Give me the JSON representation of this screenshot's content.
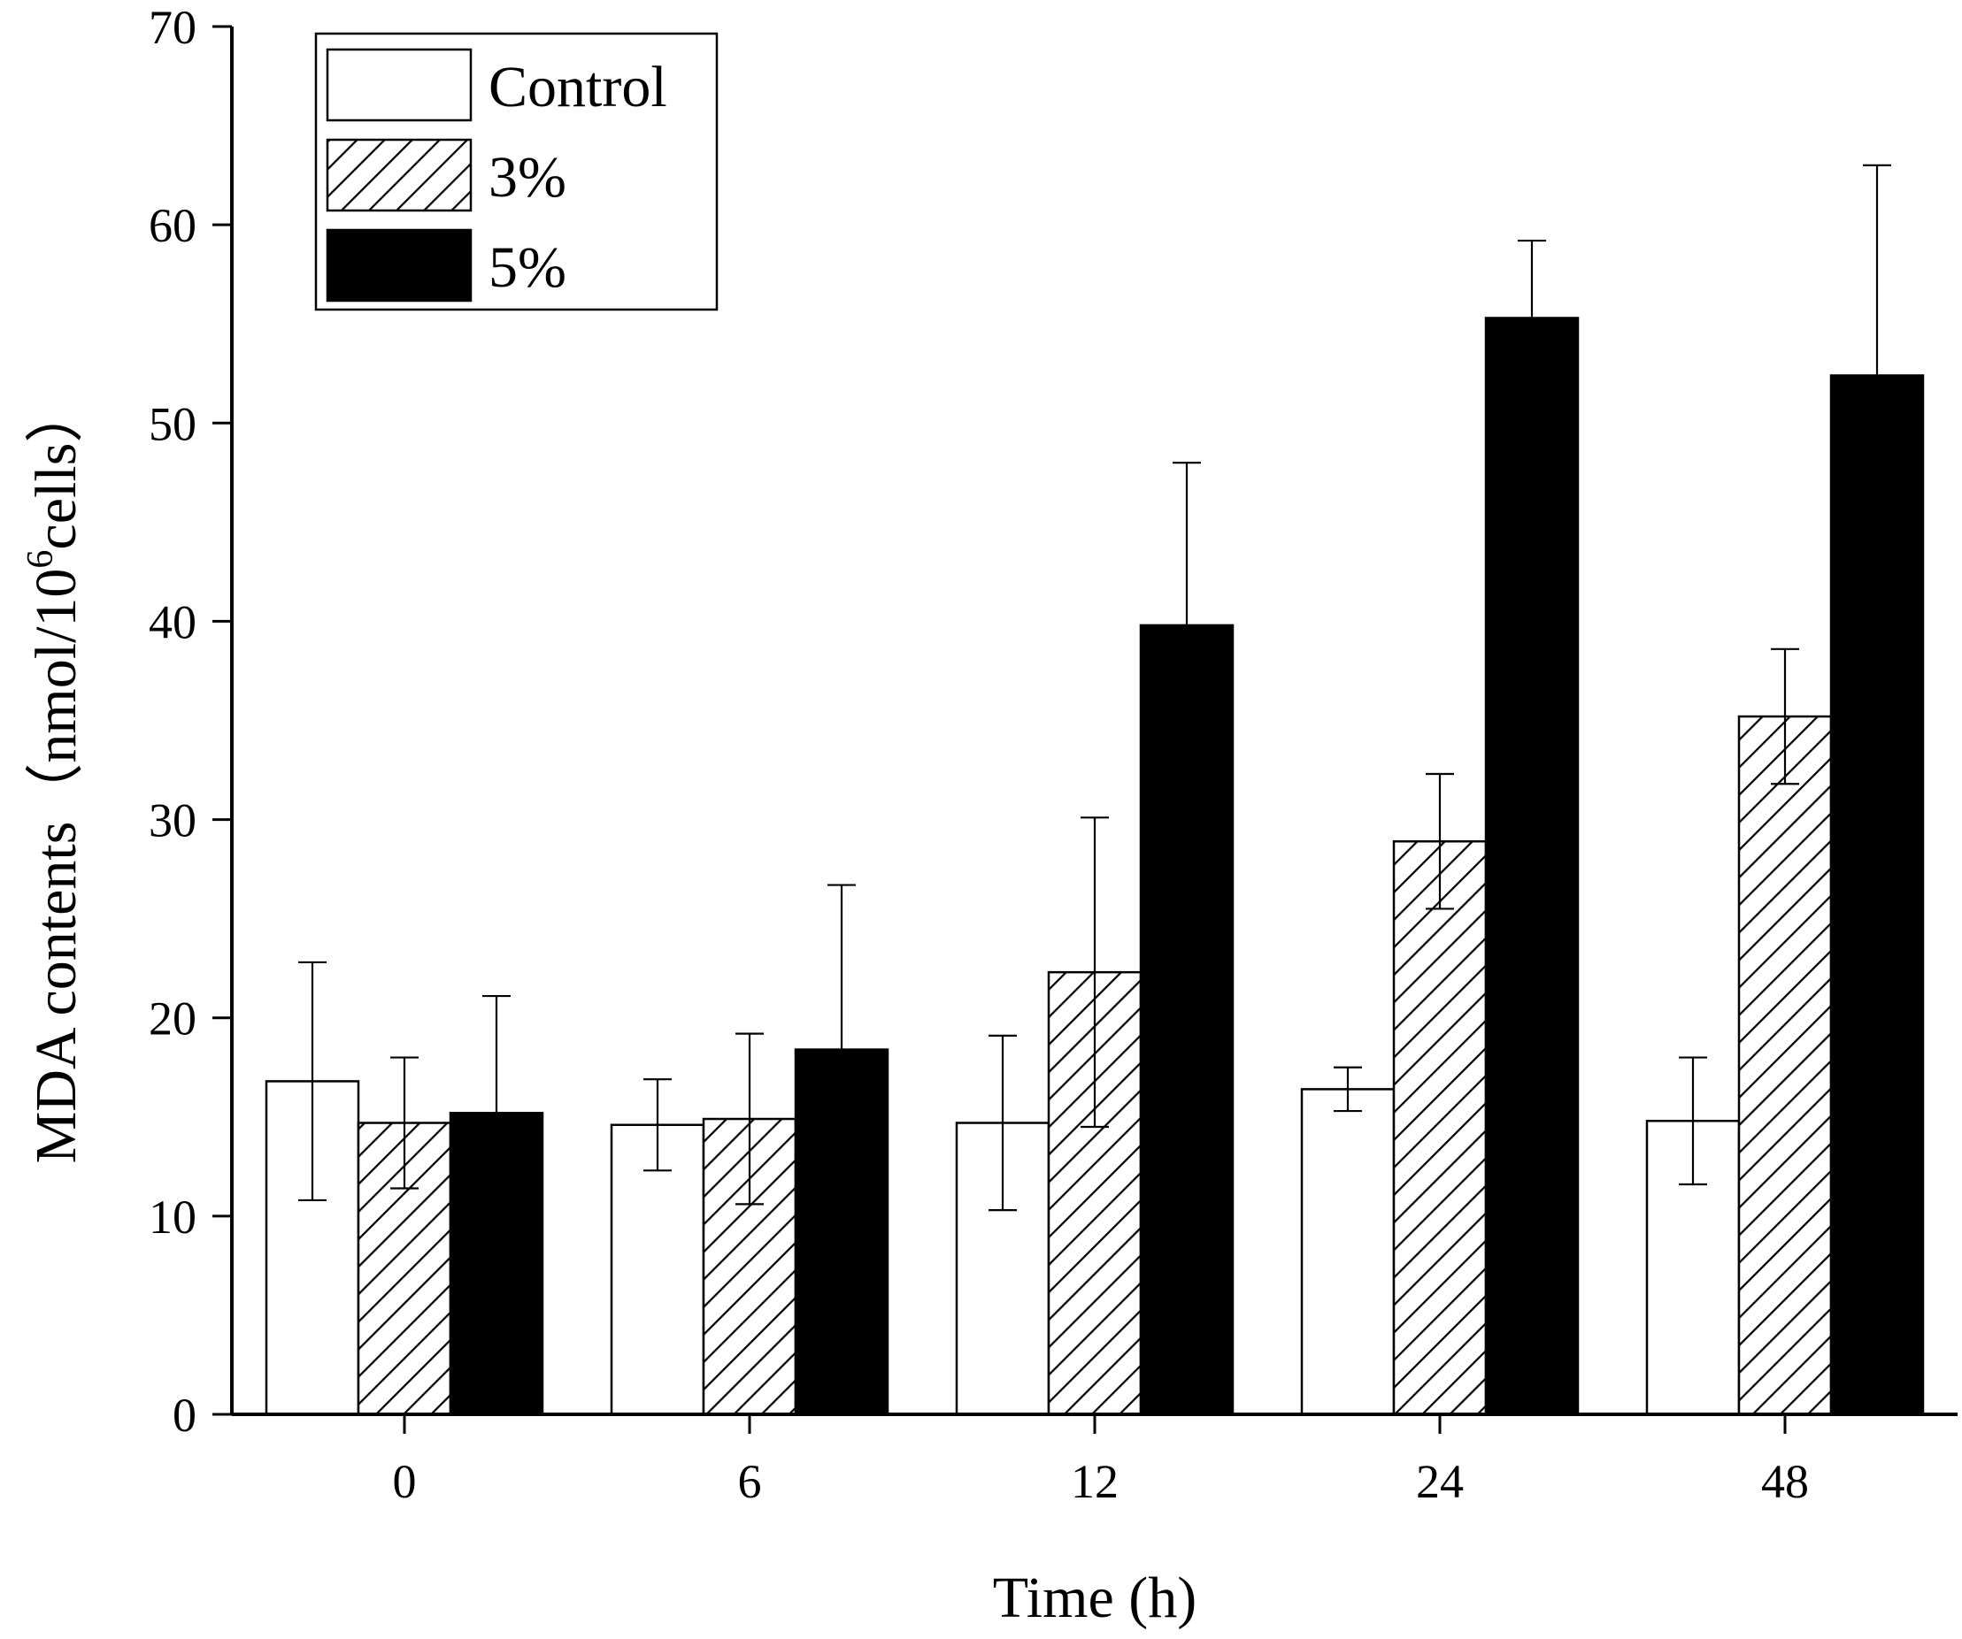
{
  "chart_data": {
    "type": "bar",
    "title": "",
    "xlabel": "Time (h)",
    "ylabel": "MDA contents（nmol/10",
    "ylabel_superscript": "6",
    "ylabel_suffix": "cells）",
    "categories": [
      "0",
      "6",
      "12",
      "24",
      "48"
    ],
    "ylim": [
      0,
      70
    ],
    "yticks": [
      "0",
      "10",
      "20",
      "30",
      "40",
      "50",
      "60",
      "70"
    ],
    "grid": false,
    "legend_position": "top-left",
    "series": [
      {
        "name": "Control",
        "fill": "white",
        "values": [
          16.8,
          14.6,
          14.7,
          16.4,
          14.8
        ],
        "errors": [
          6.0,
          2.3,
          4.4,
          1.1,
          3.2
        ]
      },
      {
        "name": "3%",
        "fill": "hatch",
        "values": [
          14.7,
          14.9,
          22.3,
          28.9,
          35.2
        ],
        "errors": [
          3.3,
          4.3,
          7.8,
          3.4,
          3.4
        ]
      },
      {
        "name": "5%",
        "fill": "black",
        "values": [
          15.2,
          18.4,
          39.8,
          55.3,
          52.4
        ],
        "errors": [
          5.9,
          8.3,
          8.2,
          3.9,
          10.6
        ]
      }
    ]
  }
}
